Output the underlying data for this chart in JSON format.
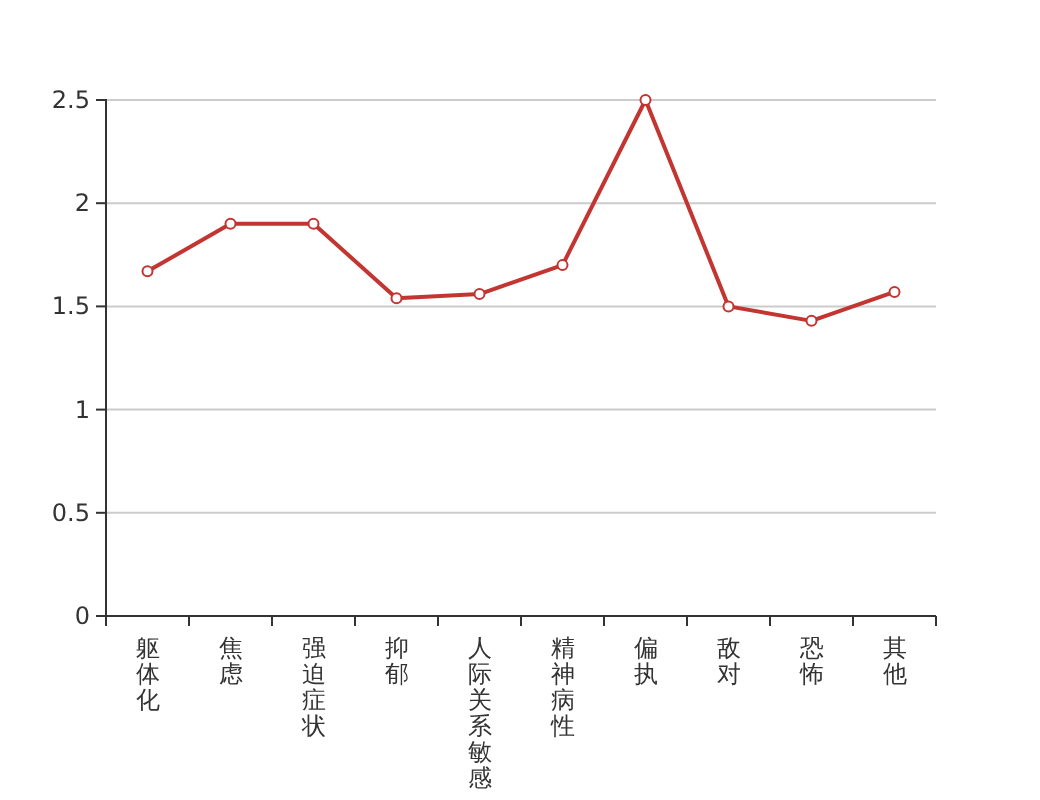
{
  "chart_data": {
    "type": "line",
    "categories": [
      "躯体化",
      "焦虑",
      "强迫症状",
      "抑郁",
      "人际关系敏感",
      "精神病性",
      "偏执",
      "敌对",
      "恐怖",
      "其他"
    ],
    "series": [
      {
        "color": "#c23531",
        "values": [
          1.67,
          1.9,
          1.9,
          1.54,
          1.56,
          1.7,
          2.5,
          1.5,
          1.43,
          1.57
        ]
      }
    ],
    "ylim": [
      0,
      2.5
    ],
    "yticks": [
      0,
      0.5,
      1,
      1.5,
      2,
      2.5
    ],
    "grid": "y",
    "marker": "circle",
    "line_style": "solid"
  }
}
